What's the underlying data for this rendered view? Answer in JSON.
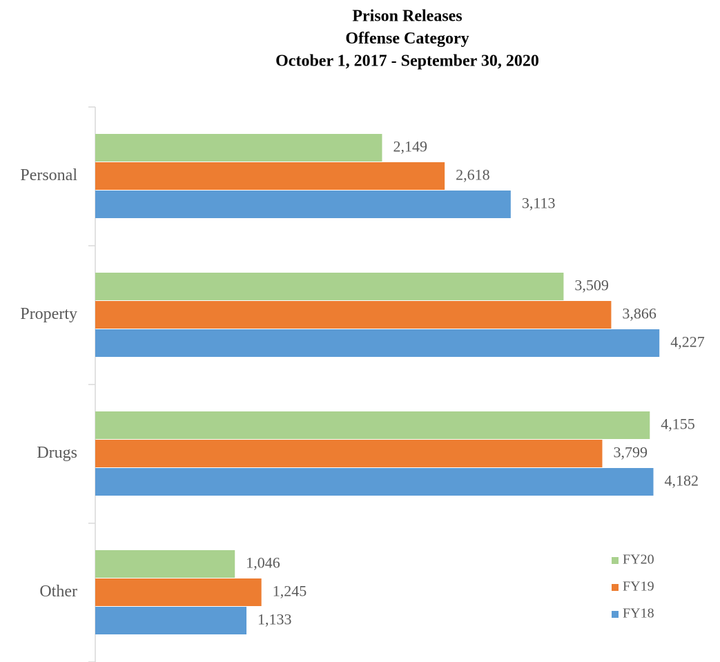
{
  "chart_data": {
    "type": "hbar",
    "title": [
      "Prison Releases",
      "Offense Category",
      "October 1, 2017 - September 30, 2020"
    ],
    "categories": [
      "Personal",
      "Property",
      "Drugs",
      "Other"
    ],
    "series": [
      {
        "name": "FY20",
        "color": "#a9d18e",
        "values": [
          2149,
          3509,
          4155,
          1046
        ],
        "value_labels": [
          "2,149",
          "3,509",
          "4,155",
          "1,046"
        ]
      },
      {
        "name": "FY19",
        "color": "#ed7d31",
        "values": [
          2618,
          3866,
          3799,
          1245
        ],
        "value_labels": [
          "2,618",
          "3,866",
          "3,799",
          "1,245"
        ]
      },
      {
        "name": "FY18",
        "color": "#5b9bd5",
        "values": [
          3113,
          4227,
          4182,
          1133
        ],
        "value_labels": [
          "3,113",
          "4,227",
          "4,182",
          "1,133"
        ]
      }
    ],
    "xlim": [
      0,
      4500
    ],
    "legend": "lower right"
  }
}
